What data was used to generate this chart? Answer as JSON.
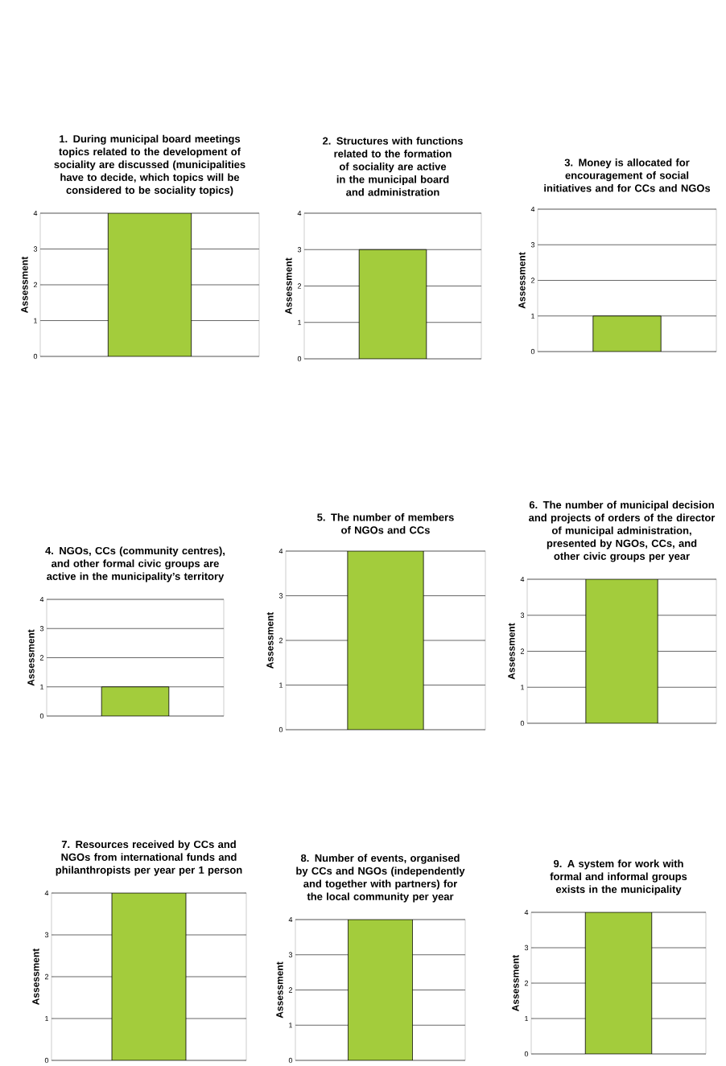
{
  "chart_data": [
    {
      "type": "bar",
      "title": "1. During municipal board meetings topics related to the development of sociality are discussed (municipalities have to decide, which topics will be considered to be sociality topics)",
      "ylabel": "Assessment",
      "categories": [
        null
      ],
      "values": [
        4
      ],
      "color": "#a3cc3c",
      "ylim": [
        0,
        4
      ],
      "yticks": [
        0,
        1,
        2,
        3,
        4
      ],
      "grid": "y",
      "tick_labels": "y"
    },
    {
      "type": "bar",
      "title": "2. Structures with functions related to the formation of sociality are active in the municipal board and administration",
      "ylabel": "Assessment",
      "categories": [
        null
      ],
      "values": [
        3
      ],
      "color": "#a3cc3c",
      "ylim": [
        0,
        4
      ],
      "yticks": [
        0,
        1,
        2,
        3,
        4
      ],
      "grid": "y",
      "tick_labels": "y"
    },
    {
      "type": "bar",
      "title": "3. Money is allocated for encouragement of social initiatives and for CCs and NGOs",
      "ylabel": "Assessment",
      "categories": [
        null
      ],
      "values": [
        1
      ],
      "color": "#a3cc3c",
      "ylim": [
        0,
        4
      ],
      "yticks": [
        0,
        1,
        2,
        3,
        4
      ],
      "grid": "y",
      "tick_labels": "y"
    },
    {
      "type": "bar",
      "title": "4. NGOs, CCs (community centres), and other formal civic groups are active in the municipality’s territory",
      "ylabel": "Assessment",
      "categories": [
        null
      ],
      "values": [
        1
      ],
      "color": "#a3cc3c",
      "ylim": [
        0,
        4
      ],
      "yticks": [
        0,
        1,
        2,
        3,
        4
      ],
      "grid": "y",
      "tick_labels": "y"
    },
    {
      "type": "bar",
      "title": "5. The number of members of NGOs and CCs",
      "ylabel": "Assessment",
      "categories": [
        null
      ],
      "values": [
        4
      ],
      "color": "#a3cc3c",
      "ylim": [
        0,
        4
      ],
      "yticks": [
        0,
        1,
        2,
        3,
        4
      ],
      "grid": "y",
      "tick_labels": "y"
    },
    {
      "type": "bar",
      "title": "6. The number of municipal decision and projects of orders of the director of municipal administration, presented by NGOs, CCs, and other civic groups per year",
      "ylabel": "Assessment",
      "categories": [
        null
      ],
      "values": [
        4
      ],
      "color": "#a3cc3c",
      "ylim": [
        0,
        4
      ],
      "yticks": [
        0,
        1,
        2,
        3,
        4
      ],
      "grid": "y",
      "tick_labels": "y"
    },
    {
      "type": "bar",
      "title": "7. Resources received by CCs and NGOs from international funds and philanthropists per year per 1 person",
      "ylabel": "Assessment",
      "categories": [
        null
      ],
      "values": [
        4
      ],
      "color": "#a3cc3c",
      "ylim": [
        0,
        4
      ],
      "yticks": [
        0,
        1,
        2,
        3,
        4
      ],
      "grid": "y",
      "tick_labels": "y"
    },
    {
      "type": "bar",
      "title": "8. Number of events, organised by CCs and NGOs (independently and together with partners) for the local community per year",
      "ylabel": "Assessment",
      "categories": [
        null
      ],
      "values": [
        4
      ],
      "color": "#a3cc3c",
      "ylim": [
        0,
        4
      ],
      "yticks": [
        0,
        1,
        2,
        3,
        4
      ],
      "grid": "y",
      "tick_labels": "y"
    },
    {
      "type": "bar",
      "title": "9. A system for work with formal and informal groups exists in the municipality",
      "ylabel": "Assessment",
      "categories": [
        null
      ],
      "values": [
        4
      ],
      "color": "#a3cc3c",
      "ylim": [
        0,
        4
      ],
      "yticks": [
        0,
        1,
        2,
        3,
        4
      ],
      "grid": "y",
      "tick_labels": "y"
    }
  ]
}
